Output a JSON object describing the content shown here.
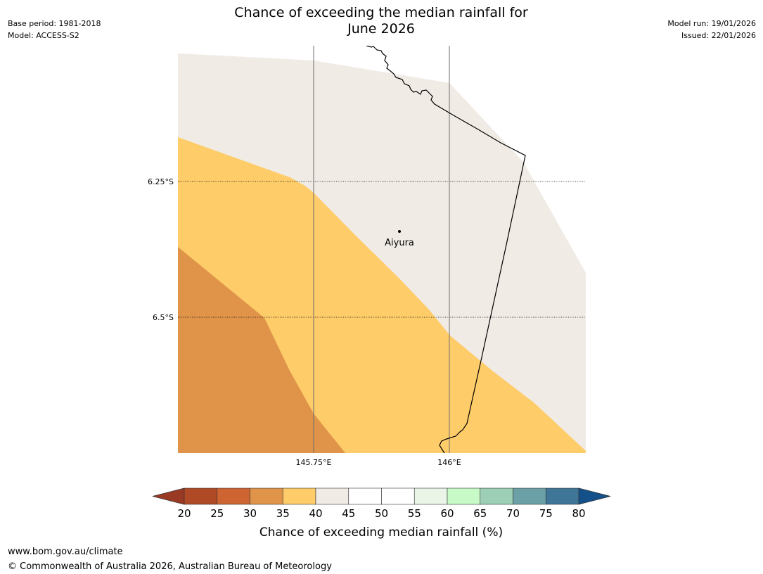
{
  "header": {
    "title_line1": "Chance of exceeding the median rainfall for",
    "title_line2": "June 2026",
    "base_period": "Base period: 1981-2018",
    "model": "Model: ACCESS-S2",
    "model_run": "Model run: 19/01/2026",
    "issued": "Issued: 22/01/2026"
  },
  "map": {
    "lat_labels": [
      "6.25°S",
      "6.5°S"
    ],
    "lon_labels": [
      "145.75°E",
      "146°E"
    ],
    "place": {
      "name": "Aiyura"
    },
    "region_colors": {
      "c30_35": "#e0944a",
      "c35_40": "#fecc69",
      "c40_45": "#f0ebe5"
    }
  },
  "colorbar": {
    "label": "Chance of exceeding median rainfall (%)",
    "ticks": [
      "20",
      "25",
      "30",
      "35",
      "40",
      "45",
      "50",
      "55",
      "60",
      "65",
      "70",
      "75",
      "80"
    ],
    "low_extend_color": "#9b3a24",
    "high_extend_color": "#14508a",
    "bins": [
      {
        "range": "20-25",
        "color": "#b04a26"
      },
      {
        "range": "25-30",
        "color": "#cd6432"
      },
      {
        "range": "30-35",
        "color": "#e0944a"
      },
      {
        "range": "35-40",
        "color": "#fecc69"
      },
      {
        "range": "40-45",
        "color": "#f0ebe5"
      },
      {
        "range": "45-50",
        "color": "#ffffff"
      },
      {
        "range": "50-55",
        "color": "#ffffff"
      },
      {
        "range": "55-60",
        "color": "#eaf5e8"
      },
      {
        "range": "60-65",
        "color": "#c8fac8"
      },
      {
        "range": "65-70",
        "color": "#9ccfb6"
      },
      {
        "range": "70-75",
        "color": "#6ba1a6"
      },
      {
        "range": "75-80",
        "color": "#3f7596"
      }
    ]
  },
  "footer": {
    "url": "www.bom.gov.au/climate",
    "copyright": "© Commonwealth of Australia 2026, Australian Bureau of Meteorology"
  }
}
